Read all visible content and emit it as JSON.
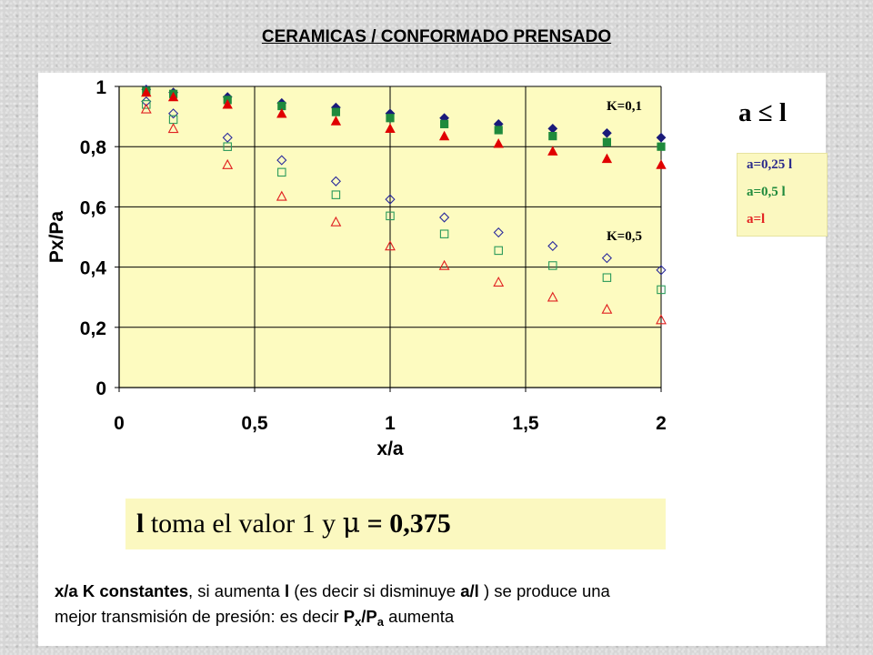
{
  "page": {
    "title": "CERAMICAS / CONFORMADO PRENSADO",
    "inequality_label": "a ≤ l",
    "legend": [
      {
        "label": "a=0,25 l",
        "color": "#2a2a8c"
      },
      {
        "label": "a=0,5 l",
        "color": "#1f8a3c"
      },
      {
        "label": "a=l",
        "color": "#e32222"
      }
    ],
    "info": {
      "l": "l",
      "text": " toma el valor 1 y ",
      "mu": "μ",
      "equals": " = 0,375"
    },
    "conclusion": {
      "line1_bold": "x/a  K constantes",
      "line1_a": ", si aumenta ",
      "line1_bold2": "l",
      "line1_b": "  (es decir si disminuye ",
      "line1_bold3": "a/l",
      "line1_c": " ) se produce una",
      "line2_a": "mejor transmisión de presión: es decir ",
      "line2_P": "P",
      "line2_x": "x",
      "line2_slash": "/P",
      "line2_a_sub": "a",
      "line2_b": " aumenta"
    }
  },
  "chart_data": {
    "type": "scatter",
    "xlabel": "x/a",
    "ylabel": "Px/Pa",
    "xlim": [
      0,
      2
    ],
    "ylim": [
      0,
      1
    ],
    "x_ticks": [
      "0",
      "0,5",
      "1",
      "1,5",
      "2"
    ],
    "y_ticks": [
      "0",
      "0,2",
      "0,4",
      "0,6",
      "0,8",
      "1"
    ],
    "grid": true,
    "background": "#fdfbc0",
    "annotations": [
      "K=0,1",
      "K=0,5"
    ],
    "x": [
      0.1,
      0.2,
      0.4,
      0.6,
      0.8,
      1.0,
      1.2,
      1.4,
      1.6,
      1.8,
      2.0
    ],
    "series": [
      {
        "name": "a=0,25 l",
        "K": "K=0,1",
        "marker": "diamond-filled",
        "color": "#1a1a7a",
        "values": [
          0.99,
          0.98,
          0.965,
          0.945,
          0.93,
          0.91,
          0.895,
          0.875,
          0.86,
          0.845,
          0.83
        ]
      },
      {
        "name": "a=0,5 l",
        "K": "K=0,1",
        "marker": "square-filled",
        "color": "#1f8a3c",
        "values": [
          0.985,
          0.975,
          0.955,
          0.935,
          0.915,
          0.895,
          0.875,
          0.855,
          0.835,
          0.815,
          0.8
        ]
      },
      {
        "name": "a=l",
        "K": "K=0,1",
        "marker": "triangle-filled",
        "color": "#e00000",
        "values": [
          0.98,
          0.965,
          0.94,
          0.91,
          0.885,
          0.86,
          0.835,
          0.81,
          0.785,
          0.76,
          0.74
        ]
      },
      {
        "name": "a=0,25 l",
        "K": "K=0,5",
        "marker": "diamond-open",
        "color": "#2a2a9c",
        "values": [
          0.95,
          0.91,
          0.83,
          0.755,
          0.685,
          0.625,
          0.565,
          0.515,
          0.47,
          0.43,
          0.39
        ]
      },
      {
        "name": "a=0,5 l",
        "K": "K=0,5",
        "marker": "square-open",
        "color": "#2a9a5a",
        "values": [
          0.94,
          0.89,
          0.8,
          0.715,
          0.64,
          0.57,
          0.51,
          0.455,
          0.405,
          0.365,
          0.325
        ]
      },
      {
        "name": "a=l",
        "K": "K=0,5",
        "marker": "triangle-open",
        "color": "#e02020",
        "values": [
          0.925,
          0.86,
          0.74,
          0.635,
          0.55,
          0.47,
          0.405,
          0.35,
          0.3,
          0.26,
          0.225
        ]
      }
    ]
  }
}
